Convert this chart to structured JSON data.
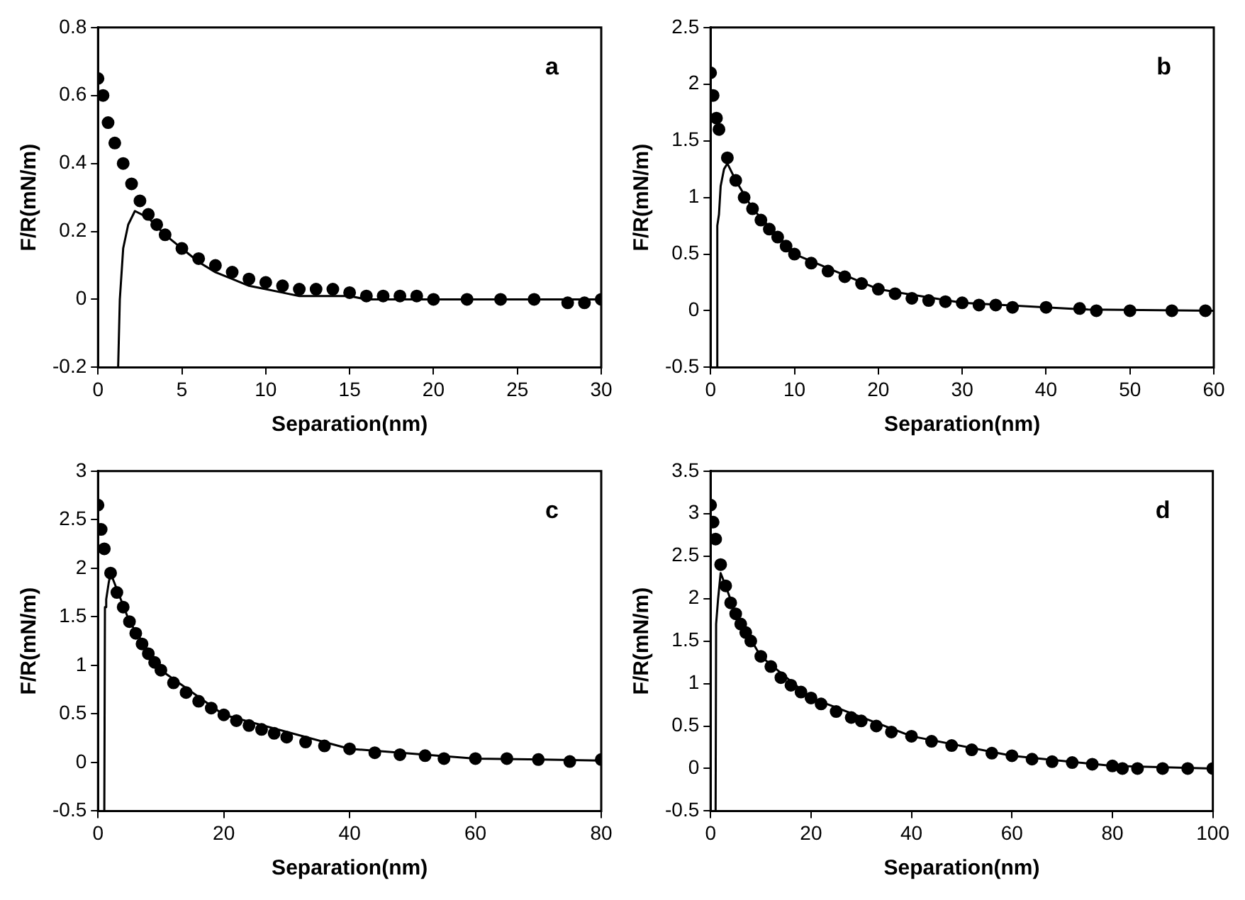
{
  "chart_data": [
    {
      "type": "scatter",
      "xlabel": "Separation(nm)",
      "ylabel": "F/R(mN/m)",
      "annotations": [
        "a"
      ],
      "grid": false,
      "legend": false,
      "xlim": [
        0,
        30
      ],
      "xticks": [
        0,
        5,
        10,
        15,
        20,
        25,
        30
      ],
      "ylim": [
        -0.2,
        0.8
      ],
      "yticks": [
        -0.2,
        0,
        0.2,
        0.4,
        0.6,
        0.8
      ],
      "series": [
        {
          "type": "scatter",
          "marker": "circle",
          "color": "#000000",
          "x": [
            0,
            0.3,
            0.6,
            1,
            1.5,
            2,
            2.5,
            3,
            3.5,
            4,
            5,
            6,
            7,
            8,
            9,
            10,
            11,
            12,
            13,
            14,
            15,
            16,
            17,
            18,
            19,
            20,
            22,
            24,
            26,
            28,
            29,
            30
          ],
          "values": [
            0.65,
            0.6,
            0.52,
            0.46,
            0.4,
            0.34,
            0.29,
            0.25,
            0.22,
            0.19,
            0.15,
            0.12,
            0.1,
            0.08,
            0.06,
            0.05,
            0.04,
            0.03,
            0.03,
            0.03,
            0.02,
            0.01,
            0.01,
            0.01,
            0.01,
            0,
            0,
            0,
            0,
            -0.01,
            -0.01,
            0
          ]
        },
        {
          "type": "line",
          "marker": "none",
          "line_style": "solid",
          "color": "#000000",
          "x": [
            1.2,
            1.3,
            1.5,
            1.8,
            2.2,
            3,
            4,
            5,
            6,
            7,
            8,
            9,
            10,
            11,
            12,
            15,
            16,
            30
          ],
          "values": [
            -0.2,
            0,
            0.15,
            0.22,
            0.26,
            0.24,
            0.19,
            0.15,
            0.11,
            0.08,
            0.06,
            0.04,
            0.03,
            0.02,
            0.01,
            0.01,
            0,
            0
          ]
        }
      ]
    },
    {
      "type": "scatter",
      "xlabel": "Separation(nm)",
      "ylabel": "F/R(mN/m)",
      "annotations": [
        "b"
      ],
      "grid": false,
      "legend": false,
      "xlim": [
        0,
        60
      ],
      "xticks": [
        0,
        10,
        20,
        30,
        40,
        50,
        60
      ],
      "ylim": [
        -0.5,
        2.5
      ],
      "yticks": [
        -0.5,
        0,
        0.5,
        1,
        1.5,
        2,
        2.5
      ],
      "series": [
        {
          "type": "scatter",
          "marker": "circle",
          "color": "#000000",
          "x": [
            0,
            0.3,
            0.7,
            1,
            2,
            3,
            4,
            5,
            6,
            7,
            8,
            9,
            10,
            12,
            14,
            16,
            18,
            20,
            22,
            24,
            26,
            28,
            30,
            32,
            34,
            36,
            40,
            44,
            46,
            50,
            55,
            59
          ],
          "values": [
            2.1,
            1.9,
            1.7,
            1.6,
            1.35,
            1.15,
            1,
            0.9,
            0.8,
            0.72,
            0.65,
            0.57,
            0.5,
            0.42,
            0.35,
            0.3,
            0.24,
            0.19,
            0.15,
            0.11,
            0.09,
            0.08,
            0.07,
            0.05,
            0.05,
            0.03,
            0.03,
            0.02,
            0,
            0,
            0,
            0
          ]
        },
        {
          "type": "line",
          "marker": "none",
          "line_style": "solid",
          "color": "#000000",
          "x": [
            0.7,
            0.8,
            1,
            1.2,
            1.6,
            2,
            3,
            5,
            10,
            20,
            30,
            45,
            60
          ],
          "values": [
            -0.5,
            0.75,
            0.85,
            1.1,
            1.25,
            1.3,
            1.15,
            0.9,
            0.5,
            0.19,
            0.07,
            0.01,
            0
          ]
        }
      ]
    },
    {
      "type": "scatter",
      "xlabel": "Separation(nm)",
      "ylabel": "F/R(mN/m)",
      "annotations": [
        "c"
      ],
      "grid": false,
      "legend": false,
      "xlim": [
        0,
        80
      ],
      "xticks": [
        0,
        20,
        40,
        60,
        80
      ],
      "ylim": [
        -0.5,
        3
      ],
      "yticks": [
        -0.5,
        0,
        0.5,
        1,
        1.5,
        2,
        2.5,
        3
      ],
      "series": [
        {
          "type": "scatter",
          "marker": "circle",
          "color": "#000000",
          "x": [
            0,
            0.5,
            1,
            2,
            3,
            4,
            5,
            6,
            7,
            8,
            9,
            10,
            12,
            14,
            16,
            18,
            20,
            22,
            24,
            26,
            28,
            30,
            33,
            36,
            40,
            44,
            48,
            52,
            55,
            60,
            65,
            70,
            75,
            80
          ],
          "values": [
            2.65,
            2.4,
            2.2,
            1.95,
            1.75,
            1.6,
            1.45,
            1.33,
            1.22,
            1.12,
            1.03,
            0.95,
            0.82,
            0.72,
            0.63,
            0.56,
            0.49,
            0.43,
            0.38,
            0.34,
            0.3,
            0.26,
            0.21,
            0.17,
            0.14,
            0.1,
            0.08,
            0.07,
            0.04,
            0.04,
            0.04,
            0.03,
            0.01,
            0.03
          ]
        },
        {
          "type": "line",
          "marker": "none",
          "line_style": "solid",
          "color": "#000000",
          "x": [
            1,
            1.1,
            1.3,
            1.7,
            2,
            5,
            10,
            20,
            40,
            60,
            80
          ],
          "values": [
            -0.5,
            1.6,
            1.68,
            1.85,
            1.95,
            1.45,
            0.95,
            0.49,
            0.14,
            0.04,
            0.02
          ]
        }
      ]
    },
    {
      "type": "scatter",
      "xlabel": "Separation(nm)",
      "ylabel": "F/R(mN/m)",
      "annotations": [
        "d"
      ],
      "grid": false,
      "legend": false,
      "xlim": [
        0,
        100
      ],
      "xticks": [
        0,
        20,
        40,
        60,
        80,
        100
      ],
      "ylim": [
        -0.5,
        3.5
      ],
      "yticks": [
        -0.5,
        0,
        0.5,
        1,
        1.5,
        2,
        2.5,
        3,
        3.5
      ],
      "series": [
        {
          "type": "scatter",
          "marker": "circle",
          "color": "#000000",
          "x": [
            0,
            0.5,
            1,
            2,
            3,
            4,
            5,
            6,
            7,
            8,
            10,
            12,
            14,
            16,
            18,
            20,
            22,
            25,
            28,
            30,
            33,
            36,
            40,
            44,
            48,
            52,
            56,
            60,
            64,
            68,
            72,
            76,
            80,
            82,
            85,
            90,
            95,
            100
          ],
          "values": [
            3.1,
            2.9,
            2.7,
            2.4,
            2.15,
            1.95,
            1.82,
            1.7,
            1.6,
            1.5,
            1.32,
            1.2,
            1.07,
            0.98,
            0.9,
            0.83,
            0.76,
            0.67,
            0.6,
            0.56,
            0.5,
            0.43,
            0.38,
            0.32,
            0.27,
            0.22,
            0.18,
            0.15,
            0.11,
            0.08,
            0.07,
            0.05,
            0.03,
            0,
            0,
            0,
            0,
            0
          ]
        },
        {
          "type": "line",
          "marker": "none",
          "line_style": "solid",
          "color": "#000000",
          "x": [
            1,
            1.1,
            1.5,
            2,
            3,
            5,
            10,
            20,
            40,
            60,
            80,
            100
          ],
          "values": [
            -0.5,
            1.7,
            2,
            2.3,
            2.15,
            1.82,
            1.32,
            0.83,
            0.38,
            0.15,
            0.03,
            0
          ]
        }
      ]
    }
  ]
}
